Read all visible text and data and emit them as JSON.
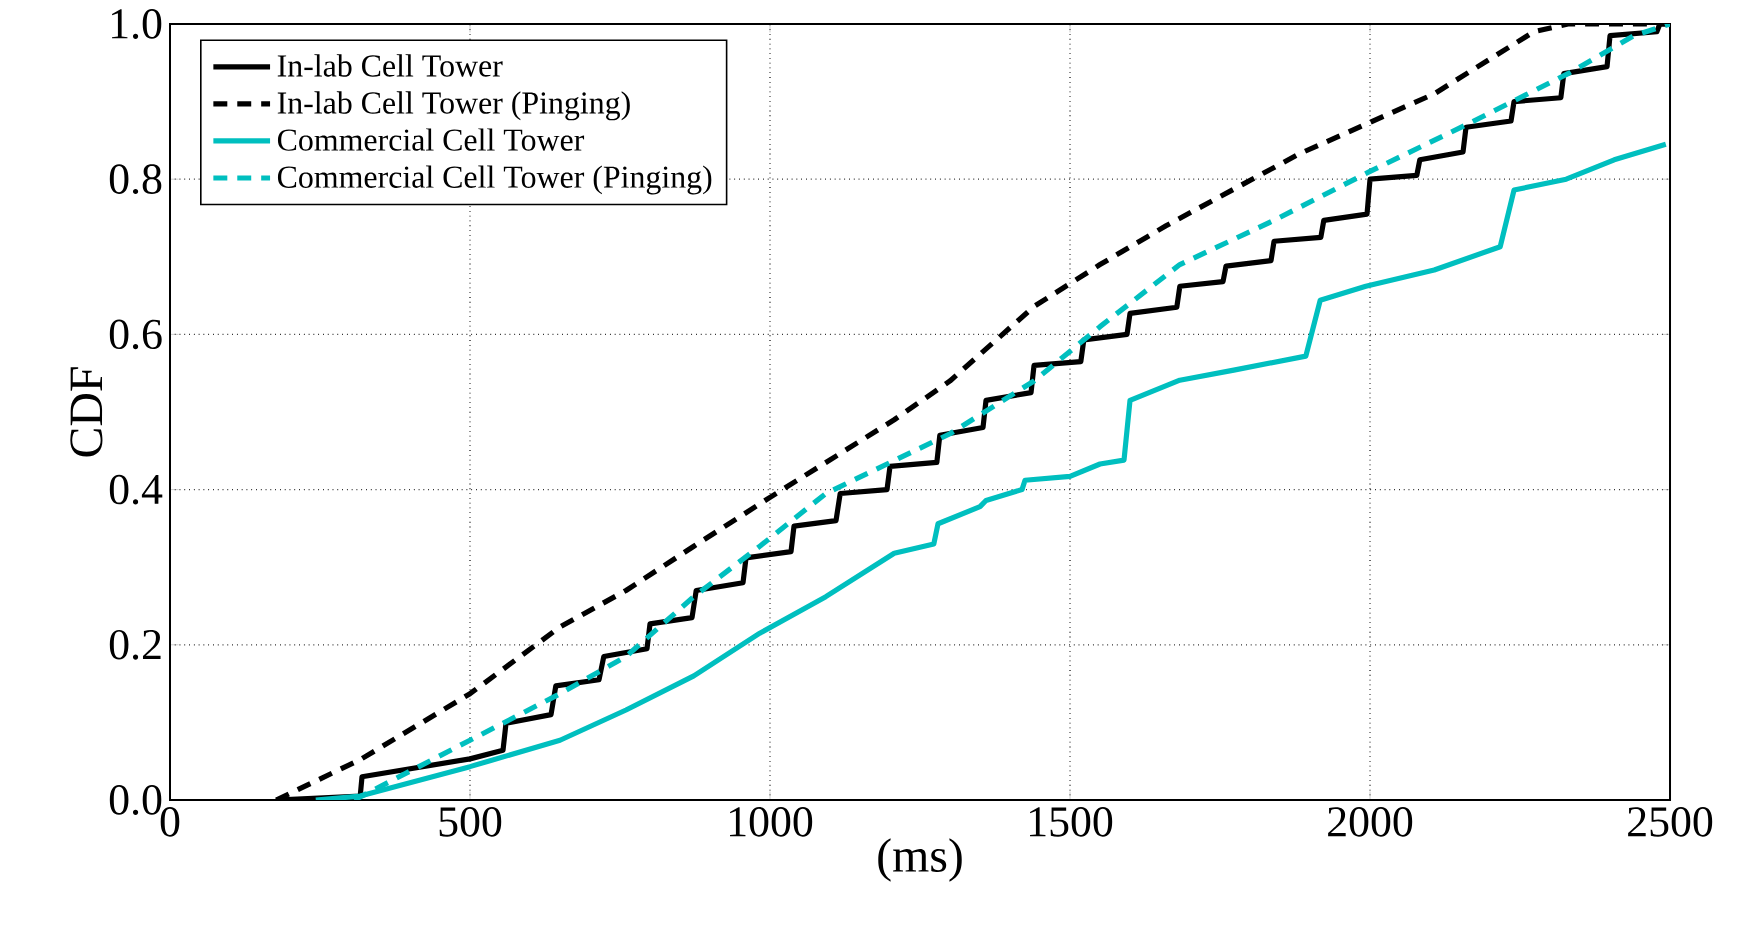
{
  "chart_data": {
    "type": "line",
    "xlabel": "(ms)",
    "ylabel": "CDF",
    "xlim": [
      0,
      2500
    ],
    "ylim": [
      0,
      1.0
    ],
    "xticks": [
      0,
      500,
      1000,
      1500,
      2000,
      2500
    ],
    "yticks": [
      {
        "value": 0,
        "label": "0.0"
      },
      {
        "value": 0.2,
        "label": "0.2"
      },
      {
        "value": 0.4,
        "label": "0.4"
      },
      {
        "value": 0.6,
        "label": "0.6"
      },
      {
        "value": 0.8,
        "label": "0.8"
      },
      {
        "value": 1.0,
        "label": "1.0"
      }
    ],
    "grid": true,
    "legend": "top left",
    "marker": "none",
    "series": [
      {
        "name": "In-lab Cell Tower",
        "color": "#000000",
        "line_style": "solid",
        "x": [
          177,
          317,
          320,
          500,
          555,
          560,
          635,
          643,
          715,
          723,
          795,
          800,
          870,
          877,
          955,
          960,
          1035,
          1040,
          1110,
          1117,
          1195,
          1200,
          1278,
          1283,
          1355,
          1360,
          1435,
          1440,
          1518,
          1523,
          1595,
          1600,
          1678,
          1683,
          1755,
          1760,
          1835,
          1840,
          1918,
          1923,
          1995,
          2000,
          2078,
          2083,
          2155,
          2160,
          2235,
          2240,
          2318,
          2323,
          2395,
          2400,
          2478,
          2483,
          2500
        ],
        "values": [
          0,
          0.005,
          0.03,
          0.053,
          0.064,
          0.099,
          0.11,
          0.147,
          0.155,
          0.185,
          0.195,
          0.227,
          0.235,
          0.27,
          0.28,
          0.312,
          0.32,
          0.353,
          0.36,
          0.395,
          0.4,
          0.43,
          0.435,
          0.47,
          0.48,
          0.515,
          0.525,
          0.56,
          0.565,
          0.593,
          0.6,
          0.627,
          0.635,
          0.662,
          0.668,
          0.688,
          0.695,
          0.72,
          0.725,
          0.747,
          0.755,
          0.8,
          0.805,
          0.825,
          0.835,
          0.867,
          0.875,
          0.9,
          0.905,
          0.936,
          0.945,
          0.985,
          0.99,
          1.0,
          1.0
        ]
      },
      {
        "name": "In-lab Cell Tower (Pinging)",
        "color": "#000000",
        "line_style": "dashed",
        "x": [
          177,
          317,
          500,
          650,
          760,
          873,
          1000,
          1207,
          1300,
          1440,
          1550,
          1660,
          1883,
          2107,
          2273,
          2330,
          2500
        ],
        "values": [
          0,
          0.052,
          0.137,
          0.223,
          0.27,
          0.327,
          0.39,
          0.49,
          0.54,
          0.636,
          0.69,
          0.74,
          0.833,
          0.91,
          0.99,
          1.0,
          1.0
        ]
      },
      {
        "name": "Commercial Cell Tower",
        "color": "#00bfbf",
        "line_style": "solid",
        "x": [
          243,
          317,
          500,
          650,
          760,
          873,
          983,
          1093,
          1207,
          1273,
          1280,
          1350,
          1360,
          1420,
          1425,
          1500,
          1550,
          1590,
          1600,
          1683,
          1773,
          1893,
          1917,
          1993,
          2107,
          2217,
          2240,
          2327,
          2407,
          2493
        ],
        "values": [
          0,
          0.005,
          0.043,
          0.077,
          0.116,
          0.16,
          0.215,
          0.262,
          0.318,
          0.33,
          0.356,
          0.378,
          0.386,
          0.4,
          0.412,
          0.417,
          0.433,
          0.438,
          0.515,
          0.541,
          0.554,
          0.572,
          0.644,
          0.662,
          0.683,
          0.713,
          0.786,
          0.8,
          0.825,
          0.845
        ]
      },
      {
        "name": "Commercial Cell Tower (Pinging)",
        "color": "#00bfbf",
        "line_style": "dashed",
        "x": [
          307,
          500,
          650,
          760,
          873,
          983,
          1093,
          1300,
          1440,
          1550,
          1683,
          1840,
          2000,
          2160,
          2330,
          2440,
          2500
        ],
        "values": [
          0,
          0.077,
          0.137,
          0.185,
          0.262,
          0.327,
          0.395,
          0.472,
          0.54,
          0.61,
          0.69,
          0.747,
          0.81,
          0.87,
          0.936,
          0.985,
          1.0
        ]
      }
    ]
  }
}
